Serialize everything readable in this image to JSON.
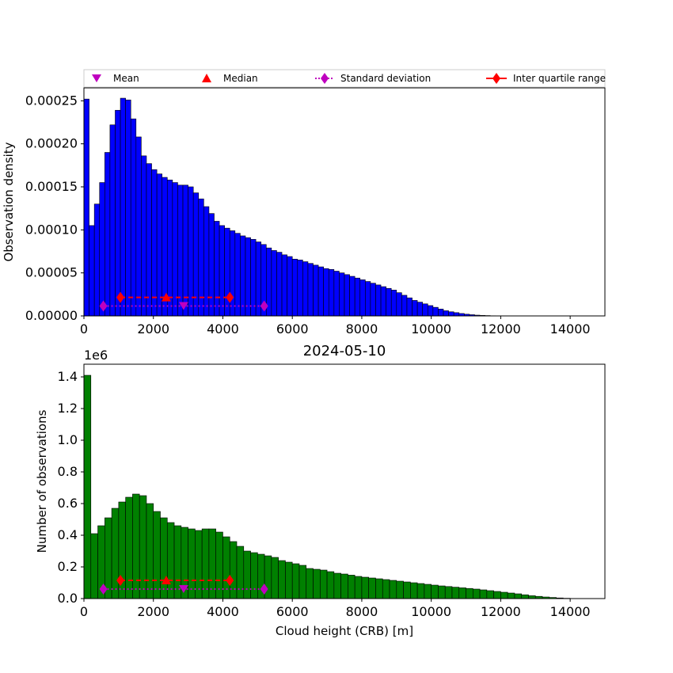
{
  "colors": {
    "top_bars": "#0000ff",
    "bottom_bars": "#008000",
    "mean": "#bf00bf",
    "median": "#ff0000",
    "stdev": "#bf00bf",
    "iqr": "#ff0000"
  },
  "legend": {
    "mean": "Mean",
    "median": "Median",
    "stdev": "Standard deviation",
    "iqr": "Inter quartile range"
  },
  "chart_data": [
    {
      "type": "bar",
      "id": "density",
      "title": "",
      "xlabel": "",
      "ylabel": "Observation density",
      "xlim": [
        0,
        15000
      ],
      "ylim": [
        0,
        0.000265
      ],
      "bin_width": 150,
      "x_ticks": [
        "0",
        "2000",
        "4000",
        "6000",
        "8000",
        "10000",
        "12000",
        "14000"
      ],
      "y_ticks": [
        "0.00000",
        "0.00005",
        "0.00010",
        "0.00015",
        "0.00020",
        "0.00025"
      ],
      "values": [
        0.000252,
        0.000105,
        0.00013,
        0.000155,
        0.00019,
        0.000222,
        0.000239,
        0.000253,
        0.000251,
        0.000229,
        0.000208,
        0.000186,
        0.000177,
        0.00017,
        0.000165,
        0.000161,
        0.000158,
        0.000155,
        0.000152,
        0.000152,
        0.00015,
        0.000143,
        0.000136,
        0.000127,
        0.000119,
        0.00011,
        0.000105,
        0.000102,
        9.9e-05,
        9.6e-05,
        9.3e-05,
        9.1e-05,
        8.9e-05,
        8.6e-05,
        8.3e-05,
        7.9e-05,
        7.6e-05,
        7.4e-05,
        7.1e-05,
        6.9e-05,
        6.6e-05,
        6.5e-05,
        6.3e-05,
        6.1e-05,
        5.9e-05,
        5.7e-05,
        5.5e-05,
        5.4e-05,
        5.2e-05,
        5e-05,
        4.8e-05,
        4.6e-05,
        4.4e-05,
        4.2e-05,
        4e-05,
        3.8e-05,
        3.6e-05,
        3.4e-05,
        3.2e-05,
        3e-05,
        2.7e-05,
        2.4e-05,
        2.1e-05,
        1.8e-05,
        1.6e-05,
        1.4e-05,
        1.2e-05,
        1e-05,
        8e-06,
        6e-06,
        4.8e-06,
        3.8e-06,
        2.8e-06,
        2e-06,
        1.4e-06,
        9e-07,
        6e-07,
        4e-07,
        2e-07,
        1e-07
      ],
      "stats": {
        "mean": {
          "x": 2870,
          "y": 1.15e-05
        },
        "median": {
          "x": 2370,
          "y": 2.15e-05
        },
        "stdev": {
          "x": [
            560,
            5190
          ],
          "y": 1.15e-05
        },
        "iqr": {
          "x": [
            1050,
            4200
          ],
          "y": 2.15e-05
        }
      }
    },
    {
      "type": "bar",
      "id": "counts",
      "title": "2024-05-10",
      "xlabel": "Cloud height (CRB) [m]",
      "ylabel": "Number of observations",
      "y_multiplier": "1e6",
      "xlim": [
        0,
        15000
      ],
      "ylim": [
        0,
        1.48
      ],
      "bin_width": 200,
      "x_ticks": [
        "0",
        "2000",
        "4000",
        "6000",
        "8000",
        "10000",
        "12000",
        "14000"
      ],
      "y_ticks": [
        "0.0",
        "0.2",
        "0.4",
        "0.6",
        "0.8",
        "1.0",
        "1.2",
        "1.4"
      ],
      "values": [
        1.41,
        0.41,
        0.46,
        0.51,
        0.57,
        0.61,
        0.64,
        0.66,
        0.65,
        0.6,
        0.55,
        0.51,
        0.48,
        0.46,
        0.45,
        0.44,
        0.43,
        0.44,
        0.44,
        0.42,
        0.39,
        0.36,
        0.33,
        0.3,
        0.29,
        0.28,
        0.27,
        0.26,
        0.24,
        0.23,
        0.22,
        0.21,
        0.19,
        0.185,
        0.18,
        0.17,
        0.16,
        0.155,
        0.148,
        0.14,
        0.135,
        0.13,
        0.125,
        0.12,
        0.115,
        0.11,
        0.105,
        0.1,
        0.095,
        0.09,
        0.085,
        0.08,
        0.076,
        0.072,
        0.068,
        0.064,
        0.06,
        0.055,
        0.05,
        0.045,
        0.04,
        0.035,
        0.03,
        0.024,
        0.018,
        0.014,
        0.01,
        0.007,
        0.004,
        0.002,
        0.001,
        0.0005
      ],
      "stats": {
        "mean": {
          "x": 2870,
          "y": 0.06
        },
        "median": {
          "x": 2370,
          "y": 0.115
        },
        "stdev": {
          "x": [
            560,
            5190
          ],
          "y": 0.06
        },
        "iqr": {
          "x": [
            1050,
            4200
          ],
          "y": 0.115
        }
      }
    }
  ]
}
